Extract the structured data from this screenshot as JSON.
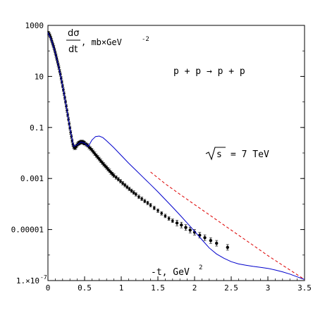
{
  "chart_data": {
    "type": "scatter",
    "title": "",
    "ylabel_numerator": "dσ",
    "ylabel_denominator": "dt",
    "ylabel_units": ", mb×GeV",
    "ylabel_units_exp": "-2",
    "xlabel": "-t, GeV",
    "xlabel_exp": "2",
    "process_label": "p + p → p + p",
    "energy_label": "= 7 TeV",
    "energy_symbol": "s",
    "xlim": [
      0,
      3.5
    ],
    "ylim": [
      1e-07,
      1000
    ],
    "yscale": "log",
    "x_ticks": [
      0,
      0.5,
      1,
      1.5,
      2,
      2.5,
      3,
      3.5
    ],
    "x_tick_labels": [
      "0",
      "0.5",
      "1",
      "1.5",
      "2",
      "2.5",
      "3",
      "3.5"
    ],
    "y_ticks": [
      1e-07,
      1e-05,
      0.001,
      0.1,
      10,
      1000
    ],
    "y_tick_labels": [
      "1.×10",
      "0.00001",
      "0.001",
      "0.1",
      "10",
      "1000"
    ],
    "y_first_tick_exp": "-7",
    "series": [
      {
        "style": "points-with-errorbars",
        "color": "#000000",
        "x": [
          0.01,
          0.02,
          0.03,
          0.04,
          0.05,
          0.06,
          0.07,
          0.08,
          0.09,
          0.1,
          0.11,
          0.12,
          0.13,
          0.14,
          0.15,
          0.16,
          0.17,
          0.18,
          0.19,
          0.2,
          0.21,
          0.22,
          0.23,
          0.24,
          0.25,
          0.26,
          0.27,
          0.28,
          0.29,
          0.3,
          0.31,
          0.32,
          0.33,
          0.34,
          0.35,
          0.36,
          0.37,
          0.38,
          0.39,
          0.4,
          0.41,
          0.42,
          0.43,
          0.44,
          0.45,
          0.46,
          0.47,
          0.48,
          0.49,
          0.5,
          0.52,
          0.54,
          0.56,
          0.58,
          0.6,
          0.62,
          0.64,
          0.66,
          0.68,
          0.7,
          0.72,
          0.74,
          0.76,
          0.78,
          0.8,
          0.82,
          0.84,
          0.86,
          0.88,
          0.9,
          0.93,
          0.96,
          0.99,
          1.02,
          1.05,
          1.08,
          1.11,
          1.14,
          1.17,
          1.2,
          1.24,
          1.28,
          1.32,
          1.36,
          1.4,
          1.45,
          1.5,
          1.55,
          1.6,
          1.65,
          1.7,
          1.76,
          1.82,
          1.88,
          1.94,
          2.0,
          2.07,
          2.14,
          2.22,
          2.3,
          2.45
        ],
        "y": [
          500,
          440,
          380,
          320,
          260,
          210,
          170,
          140,
          110,
          85,
          66,
          50,
          38,
          29,
          22,
          16,
          12,
          8.5,
          6,
          4.2,
          3.0,
          2.1,
          1.45,
          1.0,
          0.68,
          0.46,
          0.31,
          0.21,
          0.14,
          0.095,
          0.064,
          0.044,
          0.03,
          0.022,
          0.018,
          0.016,
          0.016,
          0.017,
          0.019,
          0.021,
          0.023,
          0.024,
          0.025,
          0.026,
          0.027,
          0.027,
          0.027,
          0.026,
          0.025,
          0.024,
          0.022,
          0.02,
          0.017,
          0.015,
          0.013,
          0.011,
          0.0093,
          0.0079,
          0.0068,
          0.0058,
          0.0049,
          0.0042,
          0.0036,
          0.0031,
          0.0027,
          0.0023,
          0.002,
          0.0017,
          0.0015,
          0.0013,
          0.0011,
          0.00093,
          0.00078,
          0.00065,
          0.00055,
          0.00046,
          0.00039,
          0.00033,
          0.00028,
          0.00024,
          0.00019,
          0.00016,
          0.00013,
          0.00011,
          9e-05,
          7e-05,
          5.5e-05,
          4.3e-05,
          3.4e-05,
          2.7e-05,
          2.2e-05,
          1.8e-05,
          1.5e-05,
          1.2e-05,
          9.5e-06,
          7.8e-06,
          6e-06,
          4.8e-06,
          3.7e-06,
          2.9e-06,
          2e-06
        ]
      },
      {
        "style": "line",
        "color": "#0000cc",
        "x": [
          0,
          0.05,
          0.1,
          0.15,
          0.2,
          0.25,
          0.3,
          0.35,
          0.4,
          0.45,
          0.5,
          0.55,
          0.6,
          0.65,
          0.7,
          0.75,
          0.8,
          0.85,
          0.9,
          1.0,
          1.1,
          1.2,
          1.3,
          1.4,
          1.5,
          1.6,
          1.7,
          1.8,
          1.9,
          2.0,
          2.1,
          2.2,
          2.3,
          2.4,
          2.5,
          2.6,
          2.7,
          2.8,
          2.9,
          3.0,
          3.1,
          3.2,
          3.3,
          3.4,
          3.5
        ],
        "y": [
          520,
          260,
          85,
          22,
          4.2,
          0.68,
          0.095,
          0.018,
          0.021,
          0.027,
          0.024,
          0.018,
          0.032,
          0.044,
          0.046,
          0.04,
          0.03,
          0.022,
          0.016,
          0.008,
          0.004,
          0.0021,
          0.0011,
          0.00058,
          0.0003,
          0.00015,
          7.5e-05,
          3.7e-05,
          1.8e-05,
          8.5e-06,
          4e-06,
          1.9e-06,
          1.1e-06,
          7.5e-07,
          5.5e-07,
          4.5e-07,
          4e-07,
          3.6e-07,
          3.3e-07,
          3e-07,
          2.6e-07,
          2.2e-07,
          1.8e-07,
          1.4e-07,
          1.1e-07
        ]
      },
      {
        "style": "dashed-line",
        "color": "#dd0000",
        "x": [
          1.4,
          1.6,
          1.8,
          2.0,
          2.2,
          2.4,
          2.6,
          2.8,
          3.0,
          3.2,
          3.4,
          3.5
        ],
        "y": [
          0.0018,
          0.00062,
          0.00024,
          9.5e-05,
          3.8e-05,
          1.5e-05,
          6e-06,
          2.4e-06,
          9.5e-07,
          4e-07,
          1.7e-07,
          1.1e-07
        ]
      }
    ]
  }
}
